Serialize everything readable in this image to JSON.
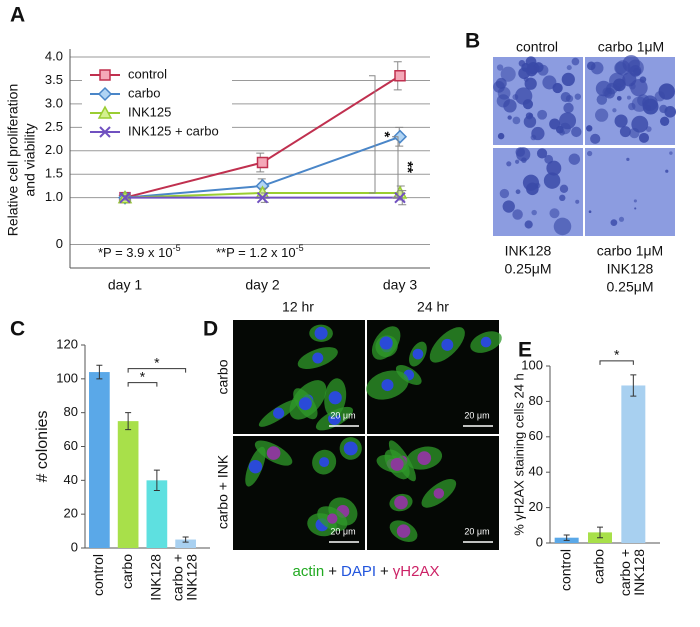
{
  "chart_data": [
    {
      "panel": "A",
      "type": "line",
      "ylabel": [
        "Relative cell proliferation",
        "and viability"
      ],
      "categories": [
        "day 1",
        "day 2",
        "day 3"
      ],
      "series": [
        {
          "name": "control",
          "color": "#c0304f",
          "marker": "square",
          "values": [
            1.0,
            1.75,
            3.6
          ],
          "errors": [
            0.05,
            0.2,
            0.3
          ]
        },
        {
          "name": "carbo",
          "color": "#4a86c8",
          "marker": "diamond",
          "values": [
            1.0,
            1.25,
            2.3
          ],
          "errors": [
            0.05,
            0.15,
            0.2
          ]
        },
        {
          "name": "INK125",
          "color": "#9acd32",
          "marker": "triangle",
          "values": [
            1.0,
            1.1,
            1.1
          ],
          "errors": [
            0.05,
            0.1,
            0.15
          ]
        },
        {
          "name": "INK125 + carbo",
          "color": "#7050c0",
          "marker": "cross",
          "values": [
            1.0,
            1.0,
            1.0
          ],
          "errors": [
            0.05,
            0.1,
            0.15
          ]
        }
      ],
      "ylim": [
        -0.5,
        4.0
      ],
      "yticks": [
        0,
        {
          "value": 1,
          "label": "1.0"
        },
        1.5,
        {
          "value": 2,
          "label": "2.0"
        },
        2.5,
        {
          "value": 3,
          "label": "3.0"
        },
        3.5,
        {
          "value": 4,
          "label": "4.0"
        }
      ],
      "grid": true,
      "legend": "upper left",
      "annotations": [
        {
          "text": "*P = 3.9 x 10",
          "exponent": "-5"
        },
        {
          "text": "**P = 1.2 x 10",
          "exponent": "-5"
        }
      ],
      "significance": [
        "*",
        "**"
      ]
    },
    {
      "panel": "C",
      "type": "bar",
      "ylabel": "# colonies",
      "categories": [
        "control",
        "carbo",
        "INK128",
        [
          "carbo +",
          "INK128"
        ]
      ],
      "values": [
        104,
        75,
        40,
        5
      ],
      "errors": [
        4,
        5,
        6,
        1.5
      ],
      "colors": [
        "#5aa8e8",
        "#a8e04a",
        "#5ee0e0",
        "#a8d0f0"
      ],
      "ylim": [
        0,
        120
      ],
      "yticks": [
        0,
        20,
        40,
        60,
        80,
        100,
        120
      ],
      "significance": [
        "*",
        "*"
      ]
    },
    {
      "panel": "E",
      "type": "bar",
      "ylabel": "% γH2AX staining cells 24 h",
      "categories": [
        "control",
        "carbo",
        [
          "carbo +",
          "INK128"
        ]
      ],
      "values": [
        3,
        6,
        89
      ],
      "errors": [
        1.5,
        3,
        6
      ],
      "colors": [
        "#5aa8e8",
        "#a8e04a",
        "#a8d0f0"
      ],
      "ylim": [
        0,
        100
      ],
      "yticks": [
        0,
        20,
        40,
        60,
        80,
        100
      ],
      "significance": [
        "*"
      ]
    }
  ],
  "panel_b": {
    "panel": "B",
    "columns": [
      "control",
      "carbo 1μM"
    ],
    "captions": [
      [
        "INK128",
        "0.25μM"
      ],
      [
        "carbo 1μM",
        "INK128",
        "0.25μM"
      ]
    ]
  },
  "panel_d": {
    "panel": "D",
    "columns": [
      "12 hr",
      "24 hr"
    ],
    "rows": [
      "carbo",
      "carbo + INK"
    ],
    "scale_bar": "20 μm",
    "stains": [
      {
        "name": "actin",
        "color": "#22aa22"
      },
      {
        "name": "DAPI",
        "color": "#2255dd"
      },
      {
        "name": "γH2AX",
        "color": "#cc2266"
      }
    ],
    "separator": "+"
  }
}
